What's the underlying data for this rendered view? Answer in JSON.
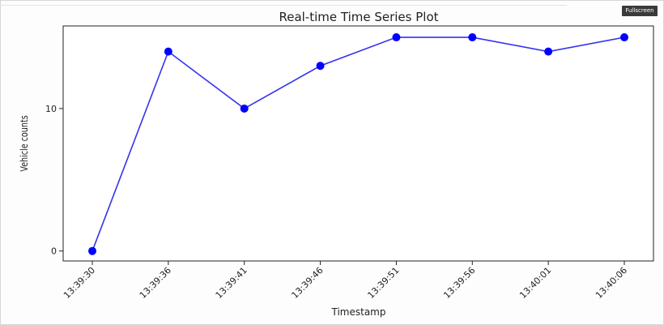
{
  "badge": {
    "label": "Fullscreen"
  },
  "chart_data": {
    "type": "line",
    "title": "Real-time Time Series Plot",
    "xlabel": "Timestamp",
    "ylabel": "Vehicle counts",
    "categories": [
      "13:39:30",
      "13:39:36",
      "13:39:41",
      "13:39:46",
      "13:39:51",
      "13:39:56",
      "13:40:01",
      "13:40:06"
    ],
    "series": [
      {
        "values": [
          0,
          14,
          10,
          13,
          15,
          15,
          14,
          15
        ]
      }
    ],
    "yticks": [
      0,
      10
    ],
    "ylim": [
      -0.7,
      15.8
    ],
    "grid": false,
    "color": "#0000ff"
  }
}
